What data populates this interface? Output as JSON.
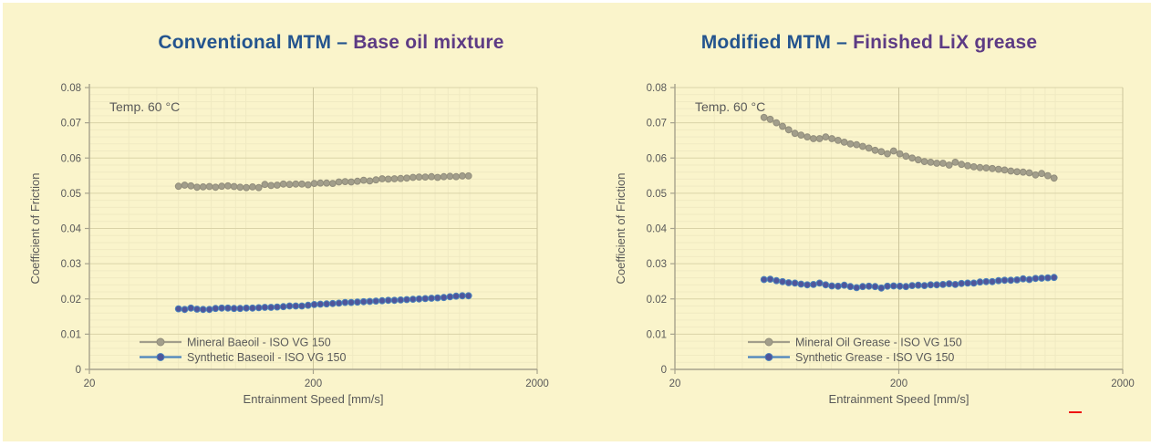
{
  "slide": {
    "background": "#FAF4CB",
    "red_dash_color": "#EE1111",
    "text_color": "#595959"
  },
  "chart_data": [
    {
      "type": "line",
      "title": {
        "part1": "Conventional MTM –",
        "part2": "Base oil mixture",
        "part1_color": "#24548E",
        "part2_color": "#5D3B84"
      },
      "annotation": "Temp. 60 °C",
      "xlabel": "Entrainment Speed [mm/s]",
      "ylabel": "Coefficient of Friction",
      "x_scale": "log",
      "xlim": [
        20,
        2000
      ],
      "ylim": [
        0,
        0.08
      ],
      "x_ticks": [
        20,
        200,
        2000
      ],
      "y_ticks": [
        0,
        0.01,
        0.02,
        0.03,
        0.04,
        0.05,
        0.06,
        0.07,
        0.08
      ],
      "grid": true,
      "legend_position": "inside-bottom-left",
      "x": [
        50.0,
        53.3,
        56.8,
        60.5,
        64.4,
        68.7,
        73.2,
        78.0,
        83.1,
        88.5,
        94.3,
        100.5,
        107.1,
        114.1,
        121.6,
        129.5,
        138.0,
        147.1,
        156.7,
        167.0,
        177.9,
        189.6,
        202.0,
        215.2,
        229.3,
        244.3,
        260.3,
        277.4,
        295.5,
        314.9,
        335.5,
        357.5,
        380.9,
        405.9,
        432.5,
        460.8,
        491.0,
        523.1,
        557.4,
        593.9,
        632.8,
        674.3,
        718.4,
        765.5,
        815.6,
        869.0,
        925.9,
        986.6
      ],
      "series": [
        {
          "name": "Mineral Baeoil - ISO VG 150",
          "line_color": "#A29E8B",
          "marker_color": "#A29E8B",
          "marker_edge": "#918D7B",
          "values": [
            0.052,
            0.0523,
            0.0521,
            0.0517,
            0.0518,
            0.0519,
            0.0517,
            0.052,
            0.0521,
            0.0519,
            0.0517,
            0.0516,
            0.0518,
            0.0516,
            0.0525,
            0.0522,
            0.0523,
            0.0526,
            0.0525,
            0.0526,
            0.0526,
            0.0524,
            0.0528,
            0.0529,
            0.0529,
            0.0528,
            0.0532,
            0.0533,
            0.0532,
            0.0534,
            0.0537,
            0.0535,
            0.0538,
            0.0541,
            0.054,
            0.0541,
            0.0542,
            0.0543,
            0.0545,
            0.0546,
            0.0546,
            0.0547,
            0.0545,
            0.0547,
            0.0548,
            0.0547,
            0.0549,
            0.0549
          ]
        },
        {
          "name": "Synthetic Baseoil - ISO VG 150",
          "line_color": "#4B83BC",
          "marker_color": "#4F569B",
          "marker_edge": "#4B83BC",
          "values": [
            0.0172,
            0.017,
            0.0174,
            0.0171,
            0.017,
            0.017,
            0.0173,
            0.0174,
            0.0174,
            0.0173,
            0.0173,
            0.0174,
            0.0174,
            0.0175,
            0.0176,
            0.0176,
            0.0177,
            0.0178,
            0.018,
            0.018,
            0.018,
            0.0182,
            0.0184,
            0.0185,
            0.0186,
            0.0187,
            0.0188,
            0.019,
            0.019,
            0.0191,
            0.0192,
            0.0193,
            0.0194,
            0.0195,
            0.0196,
            0.0196,
            0.0197,
            0.0198,
            0.0199,
            0.02,
            0.0201,
            0.0202,
            0.0203,
            0.0204,
            0.0206,
            0.0208,
            0.0209,
            0.0209
          ]
        }
      ]
    },
    {
      "type": "line",
      "title": {
        "part1": "Modified MTM –",
        "part2": "Finished LiX grease",
        "part1_color": "#24548E",
        "part2_color": "#5D3B84"
      },
      "annotation": "Temp. 60 °C",
      "xlabel": "Entrainment Speed [mm/s]",
      "ylabel": "Coefficient of Friction",
      "x_scale": "log",
      "xlim": [
        20,
        2000
      ],
      "ylim": [
        0,
        0.08
      ],
      "x_ticks": [
        20,
        200,
        2000
      ],
      "y_ticks": [
        0,
        0.01,
        0.02,
        0.03,
        0.04,
        0.05,
        0.06,
        0.07,
        0.08
      ],
      "grid": true,
      "legend_position": "inside-bottom-left",
      "x": [
        50.0,
        53.3,
        56.8,
        60.5,
        64.4,
        68.7,
        73.2,
        78.0,
        83.1,
        88.5,
        94.3,
        100.5,
        107.1,
        114.1,
        121.6,
        129.5,
        138.0,
        147.1,
        156.7,
        167.0,
        177.9,
        189.6,
        202.0,
        215.2,
        229.3,
        244.3,
        260.3,
        277.4,
        295.5,
        314.9,
        335.5,
        357.5,
        380.9,
        405.9,
        432.5,
        460.8,
        491.0,
        523.1,
        557.4,
        593.9,
        632.8,
        674.3,
        718.4,
        765.5,
        815.6,
        869.0,
        925.9,
        986.6
      ],
      "series": [
        {
          "name": "Mineral Oil Grease - ISO VG 150",
          "line_color": "#A29E8B",
          "marker_color": "#A29E8B",
          "marker_edge": "#918D7B",
          "values": [
            0.0715,
            0.071,
            0.07,
            0.069,
            0.068,
            0.067,
            0.0665,
            0.066,
            0.0655,
            0.0655,
            0.066,
            0.0655,
            0.065,
            0.0645,
            0.064,
            0.0638,
            0.0633,
            0.0628,
            0.0622,
            0.0618,
            0.0612,
            0.062,
            0.0612,
            0.0605,
            0.06,
            0.0595,
            0.059,
            0.0588,
            0.0585,
            0.0585,
            0.058,
            0.0588,
            0.0582,
            0.0578,
            0.0575,
            0.0573,
            0.0572,
            0.057,
            0.0568,
            0.0566,
            0.0563,
            0.0561,
            0.056,
            0.0558,
            0.0552,
            0.0556,
            0.055,
            0.0543
          ]
        },
        {
          "name": "Synthetic Grease - ISO VG 150",
          "line_color": "#4B83BC",
          "marker_color": "#4F569B",
          "marker_edge": "#4B83BC",
          "values": [
            0.0255,
            0.0256,
            0.0252,
            0.0249,
            0.0246,
            0.0245,
            0.0242,
            0.024,
            0.0241,
            0.0245,
            0.024,
            0.0237,
            0.0236,
            0.0239,
            0.0235,
            0.0232,
            0.0235,
            0.0236,
            0.0235,
            0.0231,
            0.0236,
            0.0237,
            0.0236,
            0.0235,
            0.0238,
            0.0239,
            0.0238,
            0.024,
            0.024,
            0.0241,
            0.0243,
            0.0241,
            0.0244,
            0.0245,
            0.0245,
            0.0248,
            0.0249,
            0.0249,
            0.0252,
            0.0253,
            0.0253,
            0.0254,
            0.0257,
            0.0255,
            0.0258,
            0.0259,
            0.026,
            0.0261
          ]
        }
      ]
    }
  ]
}
